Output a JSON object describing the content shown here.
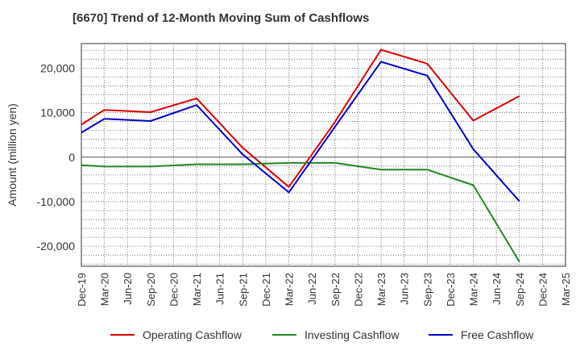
{
  "chart_data": {
    "type": "line",
    "title": "[6670]  Trend of 12-Month Moving Sum of Cashflows",
    "ylabel": "Amount (million yen)",
    "xlabel": "",
    "x": [
      "Dec-19",
      "Mar-20",
      "Jun-20",
      "Sep-20",
      "Dec-20",
      "Mar-21",
      "Jun-21",
      "Sep-21",
      "Dec-21",
      "Mar-22",
      "Jun-22",
      "Sep-22",
      "Dec-22",
      "Mar-23",
      "Jun-23",
      "Sep-23",
      "Dec-23",
      "Mar-24",
      "Jun-24",
      "Sep-24",
      "Dec-24",
      "Mar-25"
    ],
    "ylim": [
      -24500,
      25500
    ],
    "yticks": [
      -20000,
      -10000,
      0,
      10000,
      20000
    ],
    "ytick_labels": [
      "-20,000",
      "-10,000",
      "0",
      "10,000",
      "20,000"
    ],
    "grid": true,
    "legend_position": "bottom",
    "series": [
      {
        "name": "Operating Cashflow",
        "color": "#dd0000",
        "values": [
          7300,
          10600,
          null,
          10100,
          null,
          13200,
          null,
          2100,
          null,
          -6700,
          null,
          7900,
          null,
          24100,
          null,
          21000,
          null,
          8200,
          null,
          13700,
          null,
          null
        ]
      },
      {
        "name": "Investing Cashflow",
        "color": "#228822",
        "values": [
          -1800,
          -2100,
          null,
          -2100,
          null,
          -1600,
          null,
          -1600,
          null,
          -1300,
          null,
          -1300,
          null,
          -2800,
          null,
          -2800,
          null,
          -6300,
          null,
          -23500,
          null,
          null
        ]
      },
      {
        "name": "Free Cashflow",
        "color": "#0000cc",
        "values": [
          5500,
          8600,
          null,
          8100,
          null,
          11700,
          null,
          600,
          null,
          -7900,
          null,
          6800,
          null,
          21400,
          null,
          18300,
          null,
          1800,
          null,
          -9900,
          null,
          null
        ]
      }
    ]
  }
}
